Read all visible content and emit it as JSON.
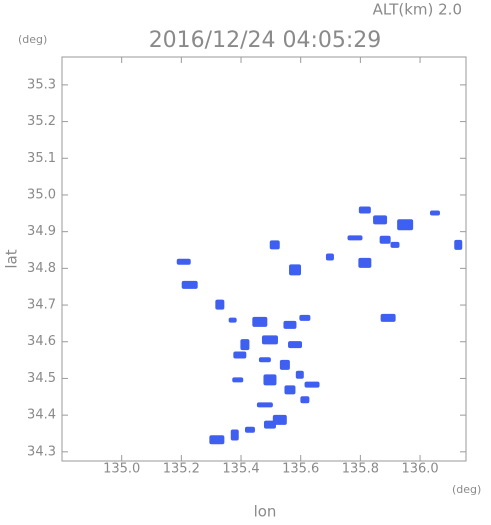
{
  "chart_data": {
    "type": "scatter",
    "title": "2016/12/24 04:05:29",
    "subtitle": "ALT(km) 2.0",
    "y_unit": "(deg)",
    "x_unit": "(deg)",
    "xlabel": "lon",
    "ylabel": "lat",
    "color": "#3f5ff0",
    "xlim": [
      134.8,
      136.154
    ],
    "ylim": [
      34.275,
      35.376
    ],
    "xticks": [
      {
        "value": 135.0,
        "label": "135.0"
      },
      135.2,
      135.4,
      135.6,
      135.8,
      {
        "value": 136.0,
        "label": "136.0"
      }
    ],
    "yticks": [
      34.3,
      34.4,
      34.5,
      34.6,
      34.7,
      34.8,
      34.9,
      {
        "value": 35.0,
        "label": "35.0"
      },
      35.1,
      35.2,
      35.3
    ],
    "x": [
      135.372,
      135.463,
      135.564,
      135.614,
      135.413,
      135.497,
      135.581,
      135.48,
      135.547,
      135.597,
      135.638,
      135.497,
      135.564,
      135.614,
      135.48,
      135.53,
      135.497,
      135.43,
      135.379,
      135.319,
      135.396,
      135.389,
      135.329,
      135.228,
      135.208,
      135.581,
      135.513,
      135.698,
      135.782,
      135.815,
      135.883,
      135.916,
      135.95,
      135.866,
      135.815,
      136.05,
      136.128,
      135.893
    ],
    "values": [
      34.659,
      34.654,
      34.646,
      34.665,
      34.592,
      34.605,
      34.592,
      34.551,
      34.537,
      34.51,
      34.483,
      34.496,
      34.469,
      34.442,
      34.428,
      34.387,
      34.374,
      34.36,
      34.346,
      34.333,
      34.564,
      34.496,
      34.701,
      34.755,
      34.818,
      34.796,
      34.864,
      34.831,
      34.883,
      34.815,
      34.878,
      34.864,
      34.919,
      34.932,
      34.959,
      34.951,
      34.864,
      34.665
    ]
  }
}
